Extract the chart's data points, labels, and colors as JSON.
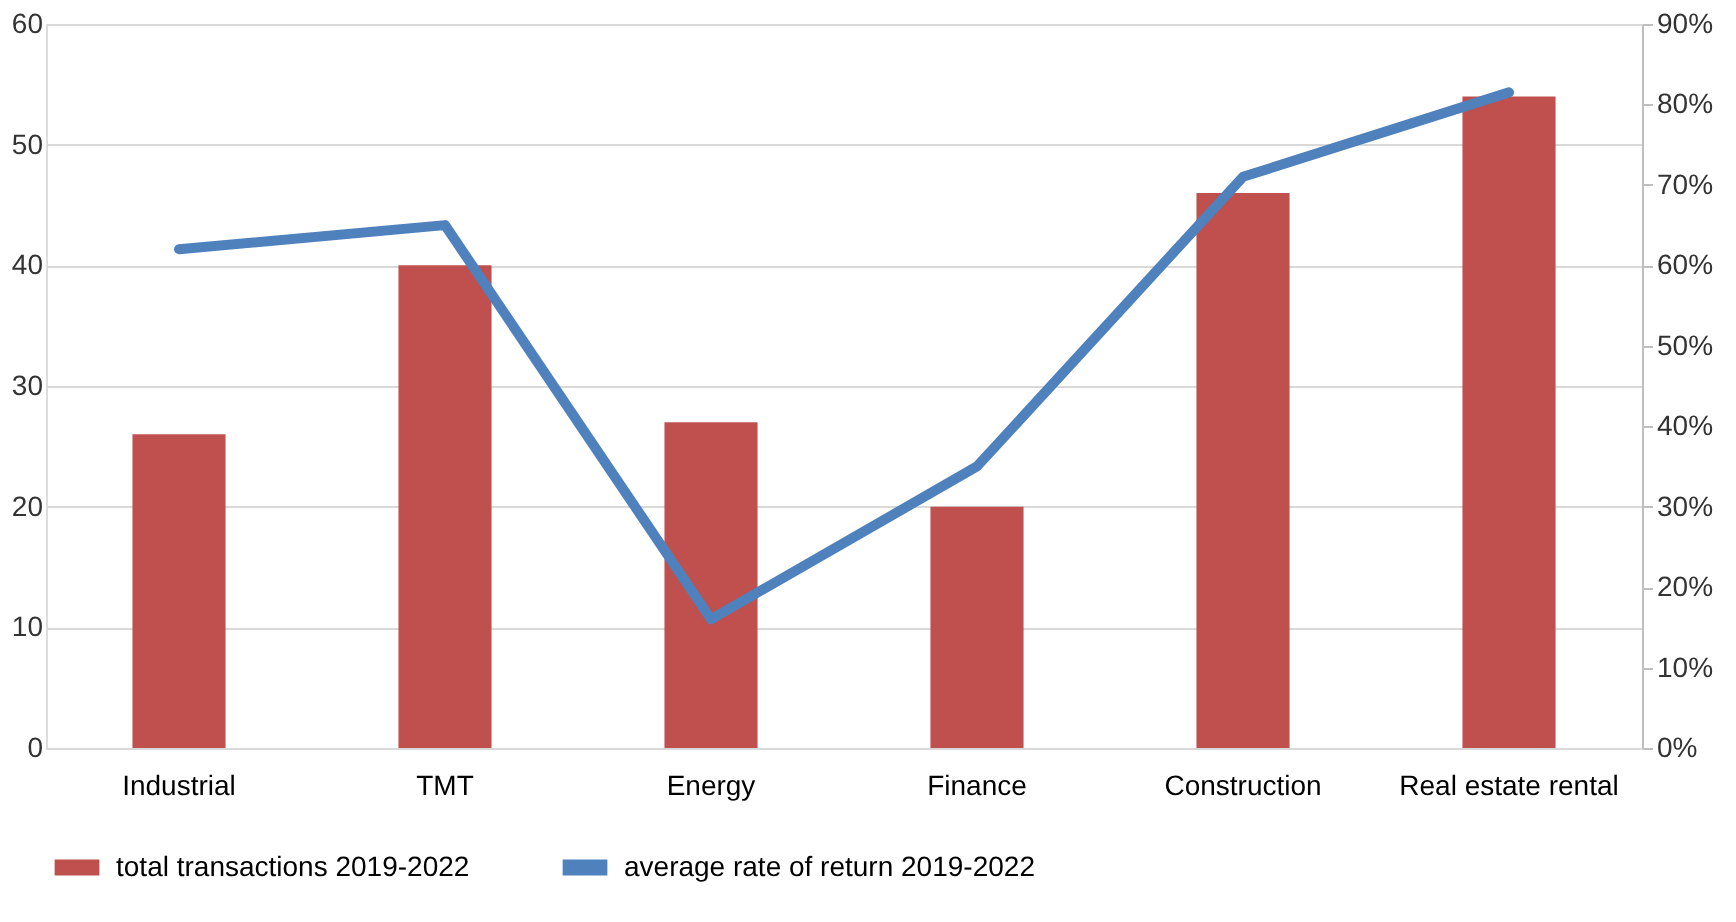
{
  "chart_data": {
    "type": "bar",
    "categories": [
      "Industrial",
      "TMT",
      "Energy",
      "Finance",
      "Construction",
      "Real estate rental"
    ],
    "series": [
      {
        "name": "total transactions 2019-2022",
        "color": "#c0504d",
        "values": [
          26,
          40,
          27,
          20,
          46,
          54
        ]
      },
      {
        "name": "average rate of return 2019-2022",
        "color": "#4f81bd",
        "type": "line",
        "axis": "y2",
        "values": [
          62,
          65,
          16,
          35,
          71,
          81.5
        ]
      }
    ],
    "ylim": [
      0,
      60
    ],
    "yticks": [
      0,
      10,
      20,
      30,
      40,
      50,
      60
    ],
    "y2lim": [
      0,
      90
    ],
    "y2ticks": [
      {
        "value": 0,
        "label": "0%"
      },
      {
        "value": 10,
        "label": "10%"
      },
      {
        "value": 20,
        "label": "20%"
      },
      {
        "value": 30,
        "label": "30%"
      },
      {
        "value": 40,
        "label": "40%"
      },
      {
        "value": 50,
        "label": "50%"
      },
      {
        "value": 60,
        "label": "60%"
      },
      {
        "value": 70,
        "label": "70%"
      },
      {
        "value": 80,
        "label": "80%"
      },
      {
        "value": 90,
        "label": "90%"
      }
    ],
    "grid": "y",
    "legend": "bottom"
  }
}
